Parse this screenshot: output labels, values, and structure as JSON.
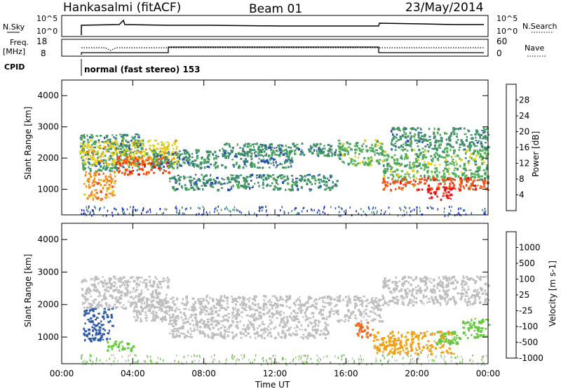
{
  "header": {
    "station": "Hankasalmi (fitACF)",
    "beam": "Beam 01",
    "date": "23/May/2014"
  },
  "strip": {
    "nsky_label": "N.Sky",
    "nsky_top": "10^5",
    "nsky_bottom": "10^0",
    "nsearch_label": "N.Search",
    "nsearch_top": "10^5",
    "nsearch_bottom": "10^0",
    "freq_label": "Freq.",
    "freq_unit": "[MHz]",
    "freq_top": "18",
    "freq_bottom": "8",
    "nave_label": "Nave",
    "nave_top": "60",
    "nave_bottom": "0",
    "cpid_label": "CPID",
    "cpid_text": "normal (fast stereo) 153"
  },
  "colors": {
    "power_scale": [
      "#0a14e6",
      "#2a50b4",
      "#3f8f6a",
      "#52b055",
      "#e6d21e",
      "#f08c1e",
      "#f0501a",
      "#e61414"
    ],
    "velocity_scale": [
      "#0a14e6",
      "#2e5aa8",
      "#2a8a4a",
      "#64c83c",
      "#c8c8c8",
      "#f0a014",
      "#f06414",
      "#e61414"
    ],
    "ground_scatter": "#bebebe"
  },
  "chart_data": [
    {
      "type": "heatmap",
      "panel": "power",
      "ylabel": "Slant Range [km]",
      "xlabel": "Time UT",
      "x_ticks": [
        "00:00",
        "04:00",
        "08:00",
        "12:00",
        "16:00",
        "20:00",
        "00:00"
      ],
      "y_ticks": [
        "1000",
        "2000",
        "3000",
        "4000"
      ],
      "xlim_hours": [
        0,
        24
      ],
      "ylim_km": [
        180,
        4500
      ],
      "colorbar": {
        "label": "Power [dB]",
        "ticks": [
          "4",
          "8",
          "12",
          "16",
          "20",
          "24",
          "28"
        ],
        "range": [
          0,
          30
        ]
      },
      "bands": [
        {
          "t0": 1.0,
          "t1": 4.5,
          "r0": 1600,
          "r1": 2800,
          "level": 8
        },
        {
          "t0": 1.0,
          "t1": 6.5,
          "r0": 1800,
          "r1": 2600,
          "level": 16
        },
        {
          "t0": 1.2,
          "t1": 3.0,
          "r0": 700,
          "r1": 1600,
          "level": 20
        },
        {
          "t0": 3.0,
          "t1": 6.0,
          "r0": 1500,
          "r1": 2100,
          "level": 24
        },
        {
          "t0": 5.0,
          "t1": 13.0,
          "r0": 1700,
          "r1": 2300,
          "level": 8
        },
        {
          "t0": 6.0,
          "t1": 15.5,
          "r0": 1000,
          "r1": 1500,
          "level": 8
        },
        {
          "t0": 9.0,
          "t1": 16.0,
          "r0": 2100,
          "r1": 2500,
          "level": 8
        },
        {
          "t0": 15.5,
          "t1": 18.0,
          "r0": 1800,
          "r1": 2600,
          "level": 12
        },
        {
          "t0": 18.0,
          "t1": 24.0,
          "r0": 1300,
          "r1": 2300,
          "level": 12
        },
        {
          "t0": 18.0,
          "t1": 24.0,
          "r0": 1000,
          "r1": 1400,
          "level": 24
        },
        {
          "t0": 20.5,
          "t1": 22.0,
          "r0": 700,
          "r1": 1100,
          "level": 28
        },
        {
          "t0": 18.5,
          "t1": 24.0,
          "r0": 2300,
          "r1": 3000,
          "level": 8
        }
      ]
    },
    {
      "type": "heatmap",
      "panel": "velocity",
      "ylabel": "Slant Range [km]",
      "xlabel": "Time UT",
      "x_ticks": [
        "00:00",
        "04:00",
        "08:00",
        "12:00",
        "16:00",
        "20:00",
        "00:00"
      ],
      "y_ticks": [
        "1000",
        "2000",
        "3000",
        "4000"
      ],
      "xlim_hours": [
        0,
        24
      ],
      "ylim_km": [
        180,
        4500
      ],
      "colorbar": {
        "label": "Velocity [m s-1]",
        "ticks": [
          "1000",
          "500",
          "100",
          "25",
          "-25",
          "-100",
          "-500",
          "-1000"
        ]
      },
      "bands": [
        {
          "t0": 1.0,
          "t1": 6.0,
          "r0": 1900,
          "r1": 2900,
          "class": "gs"
        },
        {
          "t0": 4.0,
          "t1": 18.0,
          "r0": 1500,
          "r1": 2300,
          "class": "gs"
        },
        {
          "t0": 6.0,
          "t1": 15.0,
          "r0": 1000,
          "r1": 1500,
          "class": "gs"
        },
        {
          "t0": 18.0,
          "t1": 24.0,
          "r0": 2000,
          "r1": 2900,
          "class": "gs"
        },
        {
          "t0": 1.2,
          "t1": 2.8,
          "r0": 900,
          "r1": 1900,
          "class": "v500"
        },
        {
          "t0": 2.5,
          "t1": 4.0,
          "r0": 600,
          "r1": 900,
          "class": "v100"
        },
        {
          "t0": 16.5,
          "t1": 17.5,
          "r0": 1000,
          "r1": 1500,
          "class": "vm500"
        },
        {
          "t0": 17.5,
          "t1": 22.0,
          "r0": 500,
          "r1": 1200,
          "class": "vm100"
        },
        {
          "t0": 21.0,
          "t1": 22.5,
          "r0": 800,
          "r1": 1200,
          "class": "v100"
        },
        {
          "t0": 22.5,
          "t1": 24.0,
          "r0": 1000,
          "r1": 1600,
          "class": "v100"
        }
      ]
    }
  ]
}
